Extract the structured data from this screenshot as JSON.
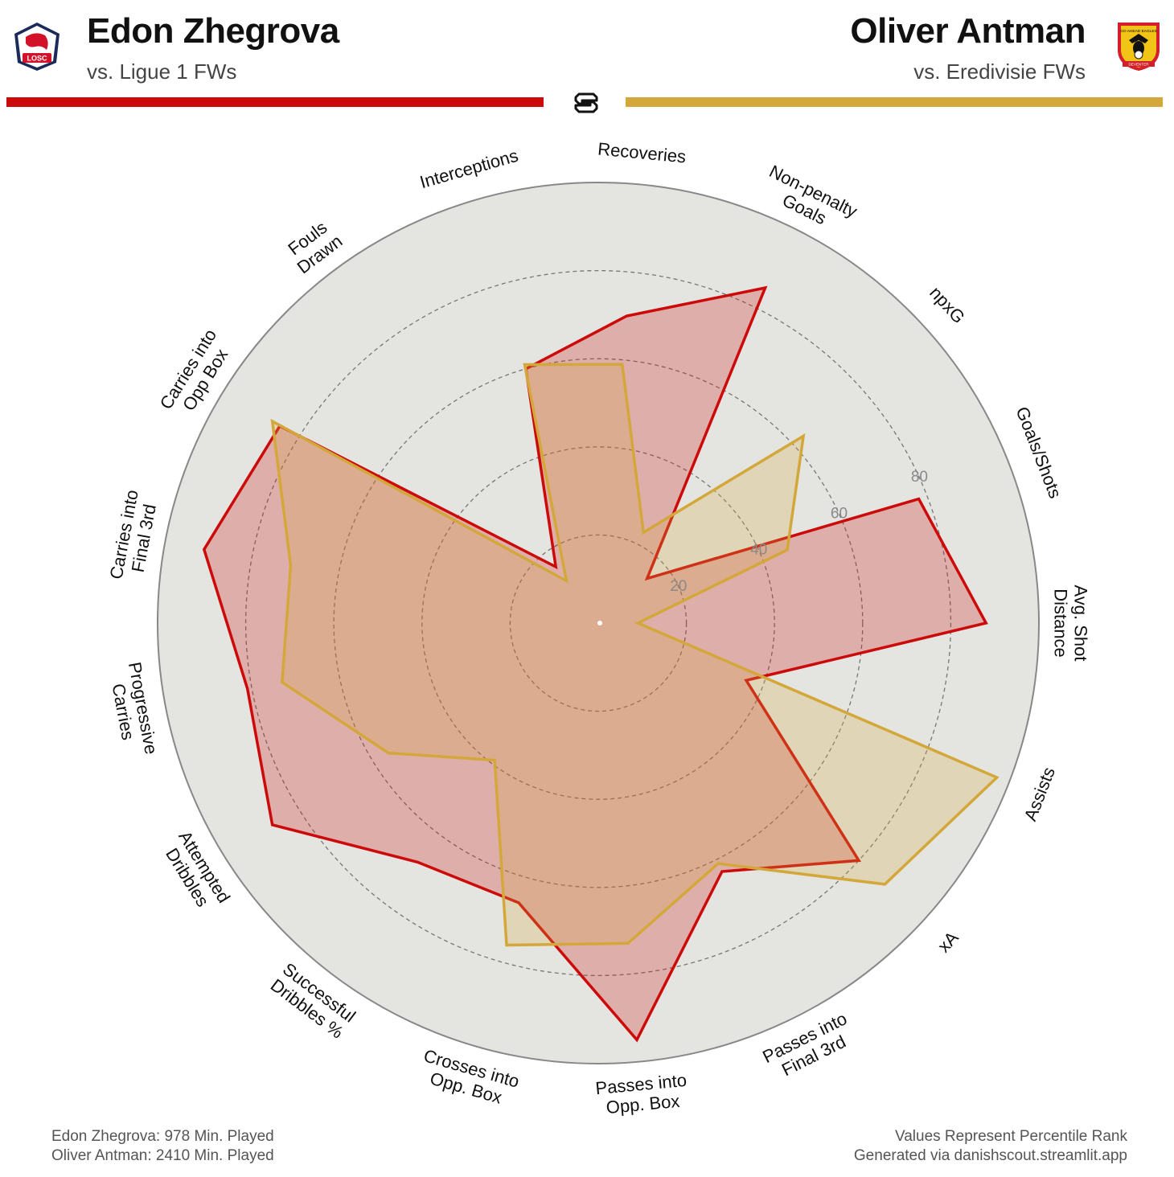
{
  "header": {
    "player1": {
      "name": "Edon Zhegrova",
      "subtitle": "vs. Ligue 1 FWs",
      "color": "#cc0a0a",
      "badge_text": "LOSC",
      "badge_color": "#1a2a5a",
      "badge_accent": "#d3122a"
    },
    "player2": {
      "name": "Oliver Antman",
      "subtitle": "vs. Eredivisie FWs",
      "color": "#d4a73a",
      "badge_text": "GO AHEAD EAGLES",
      "badge_subtext": "DEVENTER",
      "badge_color": "#d3202a",
      "badge_accent": "#f2c418"
    },
    "center_logo": "ds-logo-icon"
  },
  "chart_data": {
    "type": "radar",
    "background_color": "#e4e4e0",
    "rlim": [
      0,
      100
    ],
    "ring_ticks": [
      "20",
      "40",
      "60",
      "80"
    ],
    "axes": [
      "Avg. Shot Distance",
      "Goals/Shots",
      "npxG",
      "Non-penalty Goals",
      "Recoveries",
      "Interceptions",
      "Fouls Drawn",
      "Carries into Opp Box",
      "Carries into Final 3rd",
      "Progressive Carries",
      "Attempted Dribbles",
      "Successful Dribbles %",
      "Crosses into Opp. Box",
      "Passes into Opp. Box",
      "Passes into Final 3rd",
      "xA",
      "Assists"
    ],
    "series": [
      {
        "name": "Edon Zhegrova",
        "color": "#cc0a0a",
        "fill": "rgba(204,10,10,0.25)",
        "values": [
          88,
          78,
          15,
          85,
          70,
          60,
          16,
          85,
          91,
          81,
          87,
          68,
          66,
          95,
          63,
          80,
          36
        ]
      },
      {
        "name": "Oliver Antman",
        "color": "#d4a73a",
        "fill": "rgba(212,167,58,0.25)",
        "values": [
          9,
          46,
          63,
          23,
          59,
          61,
          12,
          87,
          71,
          73,
          56,
          39,
          76,
          73,
          61,
          88,
          97
        ]
      }
    ]
  },
  "footer": {
    "left_line1": "Edon Zhegrova: 978 Min. Played",
    "left_line2": "Oliver Antman: 2410 Min. Played",
    "right_line1": "Values Represent Percentile Rank",
    "right_line2": "Generated via danishscout.streamlit.app"
  }
}
